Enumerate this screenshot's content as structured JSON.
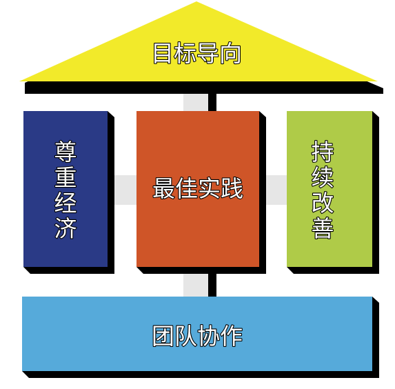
{
  "diagram": {
    "roof": {
      "label": "目标导向",
      "color": "#F2EA2A"
    },
    "left_pillar": {
      "label": "尊重经济",
      "chars": [
        "尊",
        "重",
        "经",
        "济"
      ],
      "color": "#2A3A86"
    },
    "center_pillar": {
      "label": "最佳实践",
      "color": "#CF5528"
    },
    "right_pillar": {
      "label": "持续改善",
      "chars": [
        "持",
        "续",
        "改",
        "善"
      ],
      "color": "#AFCB48"
    },
    "foundation": {
      "label": "团队协作",
      "color": "#56AADA"
    },
    "connector_color": "#E6E6E6",
    "shadow_color": "#000000"
  }
}
